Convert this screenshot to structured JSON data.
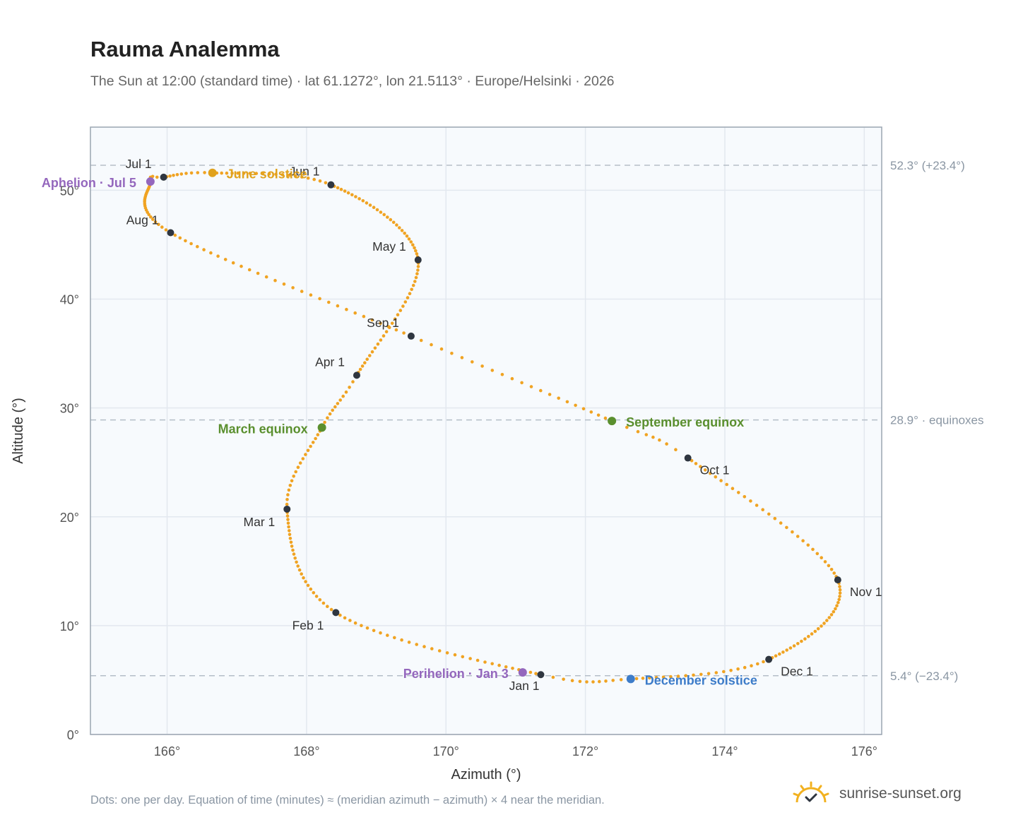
{
  "header": {
    "title": "Rauma Analemma",
    "subtitle": "The Sun at 12:00 (standard time) · lat 61.1272°, lon 21.5113° · Europe/Helsinki · 2026"
  },
  "footer": {
    "note": "Dots: one per day. Equation of time (minutes) ≈ (meridian azimuth − azimuth) × 4 near the meridian.",
    "brand": "sunrise-sunset.org"
  },
  "colors": {
    "path": "#f0a322",
    "month_marker": "#2f3640",
    "solstice": "#e0a21d",
    "december": "#3d7cc9",
    "equinox": "#5a8f2e",
    "apsis": "#9467bd",
    "grid": "#e3e8ef",
    "plot_bg": "#f7fafd",
    "frame": "#9aa5b1",
    "ref_line": "#b5bec8"
  },
  "icons": {
    "logo": "sun-check-icon"
  },
  "chart_data": {
    "type": "scatter",
    "title": "Rauma Analemma",
    "xlabel": "Azimuth (°)",
    "ylabel": "Altitude (°)",
    "xlim": [
      164.9,
      176.25
    ],
    "ylim": [
      0,
      55.8
    ],
    "x_ticks": [
      166,
      168,
      170,
      172,
      174,
      176
    ],
    "x_tick_labels": [
      "166°",
      "168°",
      "170°",
      "172°",
      "174°",
      "176°"
    ],
    "y_ticks": [
      0,
      10,
      20,
      30,
      40,
      50
    ],
    "y_tick_labels": [
      "0°",
      "10°",
      "20°",
      "30°",
      "40°",
      "50°"
    ],
    "grid": true,
    "path_anchors": [
      {
        "day": 0,
        "az": 171.36,
        "alt": 5.5
      },
      {
        "day": 31,
        "az": 168.42,
        "alt": 11.2
      },
      {
        "day": 59,
        "az": 167.72,
        "alt": 20.7
      },
      {
        "day": 78,
        "az": 168.22,
        "alt": 28.2
      },
      {
        "day": 90,
        "az": 168.72,
        "alt": 33.0
      },
      {
        "day": 120,
        "az": 169.6,
        "alt": 43.6
      },
      {
        "day": 151,
        "az": 168.35,
        "alt": 50.5
      },
      {
        "day": 171,
        "az": 166.65,
        "alt": 51.6
      },
      {
        "day": 181,
        "az": 165.95,
        "alt": 51.2
      },
      {
        "day": 185,
        "az": 165.76,
        "alt": 50.8
      },
      {
        "day": 212,
        "az": 166.05,
        "alt": 46.1
      },
      {
        "day": 243,
        "az": 169.5,
        "alt": 36.6
      },
      {
        "day": 265,
        "az": 172.38,
        "alt": 28.8
      },
      {
        "day": 273,
        "az": 173.47,
        "alt": 25.4
      },
      {
        "day": 304,
        "az": 175.62,
        "alt": 14.2
      },
      {
        "day": 334,
        "az": 174.63,
        "alt": 6.9
      },
      {
        "day": 354,
        "az": 172.65,
        "alt": 5.1
      },
      {
        "day": 365,
        "az": 171.36,
        "alt": 5.5
      }
    ],
    "month_markers": [
      {
        "label": "Jan 1",
        "az": 171.36,
        "alt": 5.5
      },
      {
        "label": "Feb 1",
        "az": 168.42,
        "alt": 11.2
      },
      {
        "label": "Mar 1",
        "az": 167.72,
        "alt": 20.7
      },
      {
        "label": "Apr 1",
        "az": 168.72,
        "alt": 33.0
      },
      {
        "label": "May 1",
        "az": 169.6,
        "alt": 43.6
      },
      {
        "label": "Jun 1",
        "az": 168.35,
        "alt": 50.5
      },
      {
        "label": "Jul 1",
        "az": 165.95,
        "alt": 51.2
      },
      {
        "label": "Aug 1",
        "az": 166.05,
        "alt": 46.1
      },
      {
        "label": "Sep 1",
        "az": 169.5,
        "alt": 36.6
      },
      {
        "label": "Oct 1",
        "az": 173.47,
        "alt": 25.4
      },
      {
        "label": "Nov 1",
        "az": 175.62,
        "alt": 14.2
      },
      {
        "label": "Dec 1",
        "az": 174.63,
        "alt": 6.9
      }
    ],
    "events": [
      {
        "label": "June solstice",
        "az": 166.65,
        "alt": 51.6,
        "kind": "solstice"
      },
      {
        "label": "December solstice",
        "az": 172.65,
        "alt": 5.1,
        "kind": "december"
      },
      {
        "label": "March equinox",
        "az": 168.22,
        "alt": 28.2,
        "kind": "equinox"
      },
      {
        "label": "September equinox",
        "az": 172.38,
        "alt": 28.8,
        "kind": "equinox"
      },
      {
        "label": "Aphelion · Jul 5",
        "az": 165.76,
        "alt": 50.8,
        "kind": "apsis"
      },
      {
        "label": "Perihelion · Jan 3",
        "az": 171.1,
        "alt": 5.7,
        "kind": "apsis"
      }
    ],
    "reference_lines": [
      {
        "alt": 52.3,
        "label": "52.3° (+23.4°)"
      },
      {
        "alt": 28.9,
        "label": "28.9° · equinoxes"
      },
      {
        "alt": 5.4,
        "label": "5.4° (−23.4°)"
      }
    ]
  }
}
